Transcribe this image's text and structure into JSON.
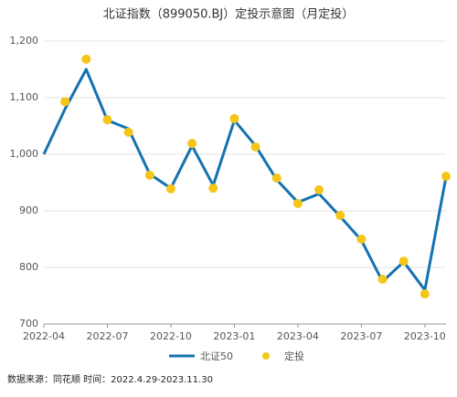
{
  "chart_data": {
    "type": "line",
    "title": "北证指数（899050.BJ）定投示意图（月定投）",
    "source": "数据来源：同花顺 时间：2022.4.29-2023.11.30",
    "categories": [
      "2022-04",
      null,
      null,
      "2022-07",
      null,
      null,
      "2022-10",
      null,
      null,
      "2023-01",
      null,
      null,
      "2023-04",
      null,
      null,
      "2023-07",
      null,
      null,
      "2023-10",
      null
    ],
    "series": [
      {
        "name": "北证50",
        "type": "line",
        "color": "#1472b0",
        "values": [
          1000,
          1080,
          1150,
          1060,
          1045,
          965,
          940,
          1015,
          945,
          1060,
          1015,
          955,
          915,
          930,
          890,
          848,
          775,
          810,
          760,
          960
        ]
      },
      {
        "name": "定投",
        "type": "scatter",
        "color": "#f5c518",
        "values": [
          null,
          1093,
          1168,
          1061,
          1039,
          963,
          939,
          1019,
          940,
          1063,
          1013,
          958,
          913,
          937,
          892,
          850,
          779,
          811,
          753,
          961
        ]
      }
    ],
    "ylim": [
      700,
      1200
    ],
    "yticks": [
      700,
      800,
      900,
      {
        "value": 1000,
        "label": "1,000"
      },
      {
        "value": 1100,
        "label": "1,100"
      },
      {
        "value": 1200,
        "label": "1,200"
      }
    ],
    "grid": true
  }
}
